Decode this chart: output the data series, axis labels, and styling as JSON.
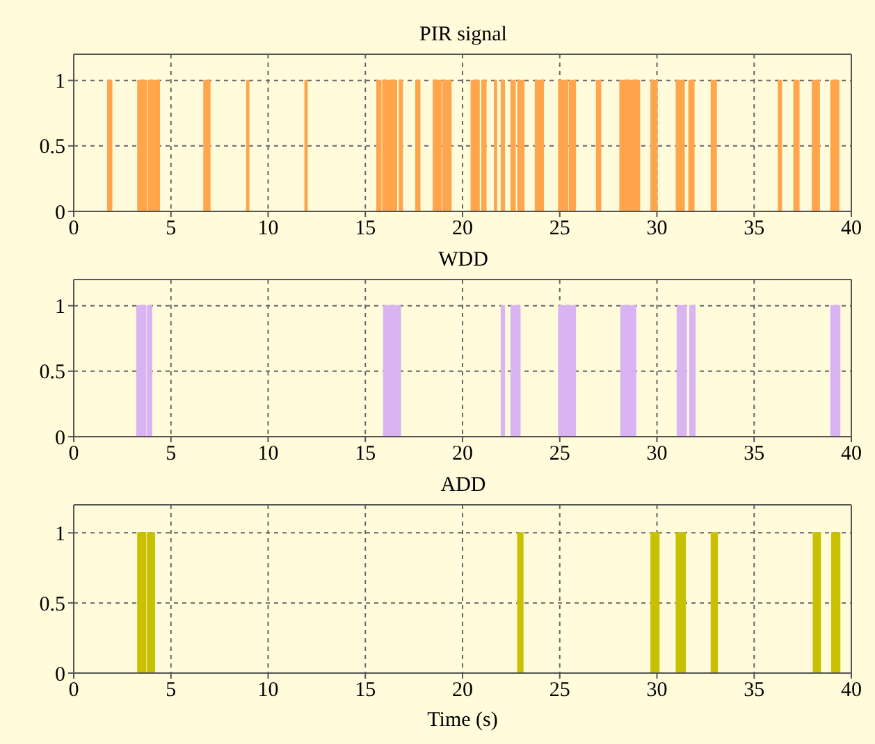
{
  "chart_data": [
    {
      "type": "area",
      "title": "PIR signal",
      "x": [
        0,
        1.75,
        1.75,
        1.95,
        1.95,
        3.3,
        3.3,
        3.75,
        3.75,
        3.85,
        3.85,
        4.4,
        4.4,
        6.7,
        6.7,
        7.0,
        7.0,
        8.9,
        8.9,
        9.0,
        9.0,
        11.9,
        11.9,
        12.0,
        12.0,
        15.6,
        15.6,
        15.8,
        15.8,
        15.9,
        15.9,
        16.6,
        16.6,
        16.75,
        16.75,
        16.9,
        16.9,
        17.6,
        17.6,
        17.8,
        17.8,
        18.5,
        18.5,
        18.9,
        18.9,
        19.0,
        19.0,
        19.4,
        19.4,
        20.45,
        20.45,
        20.85,
        20.85,
        21.0,
        21.0,
        21.2,
        21.2,
        21.65,
        21.65,
        21.75,
        21.75,
        22.0,
        22.0,
        22.15,
        22.15,
        22.5,
        22.5,
        22.7,
        22.7,
        22.85,
        22.85,
        23.15,
        23.15,
        23.75,
        23.75,
        24.15,
        24.15,
        24.95,
        24.95,
        25.4,
        25.4,
        25.5,
        25.5,
        25.8,
        25.8,
        26.9,
        26.9,
        27.1,
        27.1,
        28.1,
        28.1,
        29.1,
        29.1,
        29.7,
        29.7,
        30.0,
        30.0,
        31.0,
        31.0,
        31.4,
        31.4,
        31.65,
        31.65,
        31.9,
        31.9,
        32.8,
        32.8,
        33.05,
        33.05,
        36.25,
        36.25,
        36.4,
        36.4,
        37.05,
        37.05,
        37.3,
        37.3,
        38.0,
        38.0,
        38.35,
        38.35,
        38.95,
        38.95,
        39.35,
        39.35,
        40
      ],
      "values": [
        0,
        0,
        1,
        1,
        0,
        0,
        1,
        1,
        0,
        0,
        1,
        1,
        0,
        0,
        1,
        1,
        0,
        0,
        1,
        1,
        0,
        0,
        1,
        1,
        0,
        0,
        1,
        1,
        0,
        0,
        1,
        1,
        0,
        0,
        1,
        1,
        0,
        0,
        1,
        1,
        0,
        0,
        1,
        1,
        0,
        0,
        1,
        1,
        0,
        0,
        1,
        1,
        0,
        0,
        1,
        1,
        0,
        0,
        1,
        1,
        0,
        0,
        1,
        1,
        0,
        0,
        1,
        1,
        0,
        0,
        1,
        1,
        0,
        0,
        1,
        1,
        0,
        0,
        1,
        1,
        0,
        0,
        1,
        1,
        0,
        0,
        1,
        1,
        0,
        0,
        1,
        1,
        0,
        0,
        1,
        1,
        0,
        0,
        1,
        1,
        0,
        0,
        1,
        1,
        0,
        0,
        1,
        1,
        0,
        0,
        1,
        1,
        0,
        0,
        1,
        1,
        0,
        0,
        1,
        1,
        0,
        0,
        1,
        1,
        0,
        0
      ],
      "color": "#ffa64d",
      "xlim": [
        0,
        40
      ],
      "xticks": [
        0,
        5,
        10,
        15,
        20,
        25,
        30,
        35,
        40
      ],
      "ylim": [
        0,
        1.2
      ],
      "yticks": [
        0,
        0.5,
        1
      ],
      "grid": true
    },
    {
      "type": "area",
      "title": "WDD",
      "x": [
        0,
        3.25,
        3.25,
        3.7,
        3.7,
        3.8,
        3.8,
        4.0,
        4.0,
        15.95,
        15.95,
        16.8,
        16.8,
        22.0,
        22.0,
        22.15,
        22.15,
        22.5,
        22.5,
        22.95,
        22.95,
        24.95,
        24.95,
        25.8,
        25.8,
        28.15,
        28.15,
        28.9,
        28.9,
        31.05,
        31.05,
        31.5,
        31.5,
        31.7,
        31.7,
        31.95,
        31.95,
        38.95,
        38.95,
        39.4,
        39.4,
        40
      ],
      "values": [
        0,
        0,
        1,
        1,
        0,
        0,
        1,
        1,
        0,
        0,
        1,
        1,
        0,
        0,
        1,
        1,
        0,
        0,
        1,
        1,
        0,
        0,
        1,
        1,
        0,
        0,
        1,
        1,
        0,
        0,
        1,
        1,
        0,
        0,
        1,
        1,
        0,
        0,
        1,
        1,
        0,
        0
      ],
      "color": "#d9b3f2",
      "xlim": [
        0,
        40
      ],
      "xticks": [
        0,
        5,
        10,
        15,
        20,
        25,
        30,
        35,
        40
      ],
      "ylim": [
        0,
        1.2
      ],
      "yticks": [
        0,
        0.5,
        1
      ],
      "grid": true
    },
    {
      "type": "area",
      "title": "ADD",
      "xlabel": "Time (s)",
      "x": [
        0,
        3.3,
        3.3,
        3.7,
        3.7,
        3.8,
        3.8,
        4.15,
        4.15,
        22.85,
        22.85,
        23.1,
        23.1,
        29.7,
        29.7,
        30.1,
        30.1,
        31.0,
        31.0,
        31.45,
        31.45,
        32.8,
        32.8,
        33.1,
        33.1,
        38.05,
        38.05,
        38.4,
        38.4,
        39.0,
        39.0,
        39.4,
        39.4,
        40
      ],
      "values": [
        0,
        0,
        1,
        1,
        0,
        0,
        1,
        1,
        0,
        0,
        1,
        1,
        0,
        0,
        1,
        1,
        0,
        0,
        1,
        1,
        0,
        0,
        1,
        1,
        0,
        0,
        1,
        1,
        0,
        0,
        1,
        1,
        0,
        0
      ],
      "color": "#c8c000",
      "xlim": [
        0,
        40
      ],
      "xticks": [
        0,
        5,
        10,
        15,
        20,
        25,
        30,
        35,
        40
      ],
      "ylim": [
        0,
        1.2
      ],
      "yticks": [
        0,
        0.5,
        1
      ],
      "grid": true
    }
  ]
}
